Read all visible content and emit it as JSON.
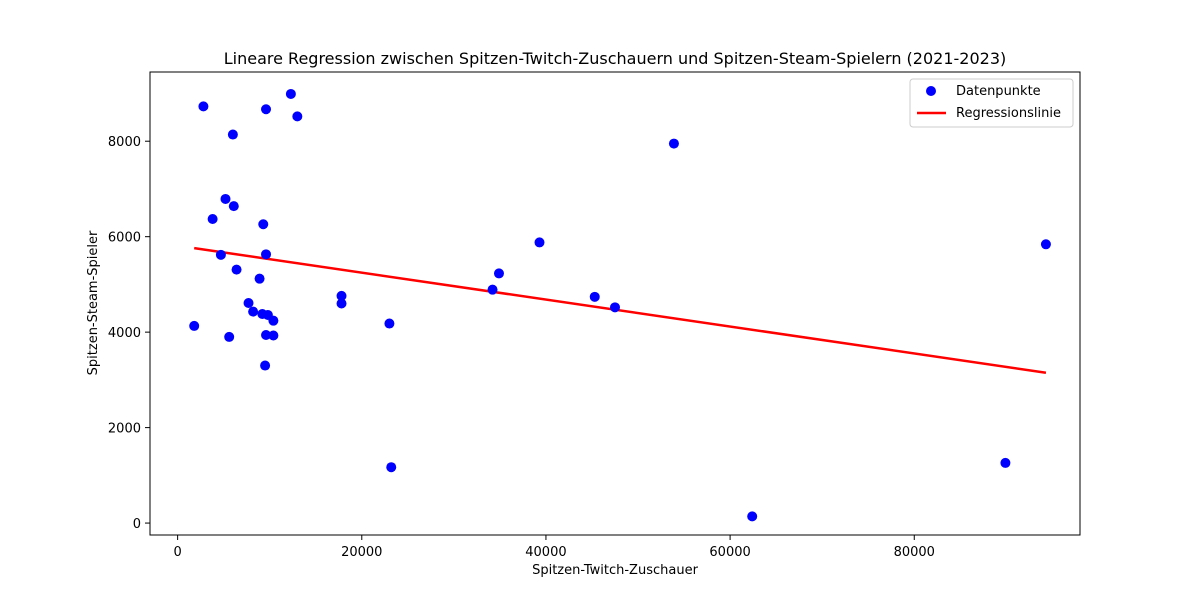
{
  "chart_data": {
    "type": "scatter",
    "title": "Lineare Regression zwischen Spitzen-Twitch-Zuschauern und Spitzen-Steam-Spielern (2021-2023)",
    "xlabel": "Spitzen-Twitch-Zuschauer",
    "ylabel": "Spitzen-Steam-Spieler",
    "xlim": [
      -3000,
      98000
    ],
    "ylim": [
      -250,
      9450
    ],
    "xticks": [
      0,
      20000,
      40000,
      60000,
      80000
    ],
    "yticks": [
      0,
      2000,
      4000,
      6000,
      8000
    ],
    "xtick_labels": [
      "0",
      "20000",
      "40000",
      "60000",
      "80000"
    ],
    "ytick_labels": [
      "0",
      "2000",
      "4000",
      "6000",
      "8000"
    ],
    "grid": false,
    "legend_position": "top-right",
    "series": [
      {
        "name": "Datenpunkte",
        "kind": "scatter",
        "color": "#0000ff",
        "points": [
          [
            1800,
            4130
          ],
          [
            2800,
            8730
          ],
          [
            3800,
            6370
          ],
          [
            4700,
            5620
          ],
          [
            5200,
            6790
          ],
          [
            5600,
            3900
          ],
          [
            6000,
            8140
          ],
          [
            6100,
            6640
          ],
          [
            6400,
            5310
          ],
          [
            7700,
            4610
          ],
          [
            8200,
            4430
          ],
          [
            8900,
            5120
          ],
          [
            9200,
            4380
          ],
          [
            9300,
            6260
          ],
          [
            9500,
            3300
          ],
          [
            9600,
            8670
          ],
          [
            9600,
            5630
          ],
          [
            9600,
            3940
          ],
          [
            9800,
            4360
          ],
          [
            10400,
            4240
          ],
          [
            10400,
            3930
          ],
          [
            12300,
            8990
          ],
          [
            13000,
            8520
          ],
          [
            17800,
            4760
          ],
          [
            17800,
            4600
          ],
          [
            23000,
            4180
          ],
          [
            23200,
            1170
          ],
          [
            34200,
            4890
          ],
          [
            34900,
            5230
          ],
          [
            39300,
            5880
          ],
          [
            45300,
            4740
          ],
          [
            47500,
            4520
          ],
          [
            53900,
            7950
          ],
          [
            62400,
            140
          ],
          [
            89900,
            1260
          ],
          [
            94300,
            5840
          ]
        ]
      },
      {
        "name": "Regressionslinie",
        "kind": "line",
        "color": "#ff0000",
        "points": [
          [
            1800,
            5760
          ],
          [
            94300,
            3150
          ]
        ]
      }
    ]
  }
}
